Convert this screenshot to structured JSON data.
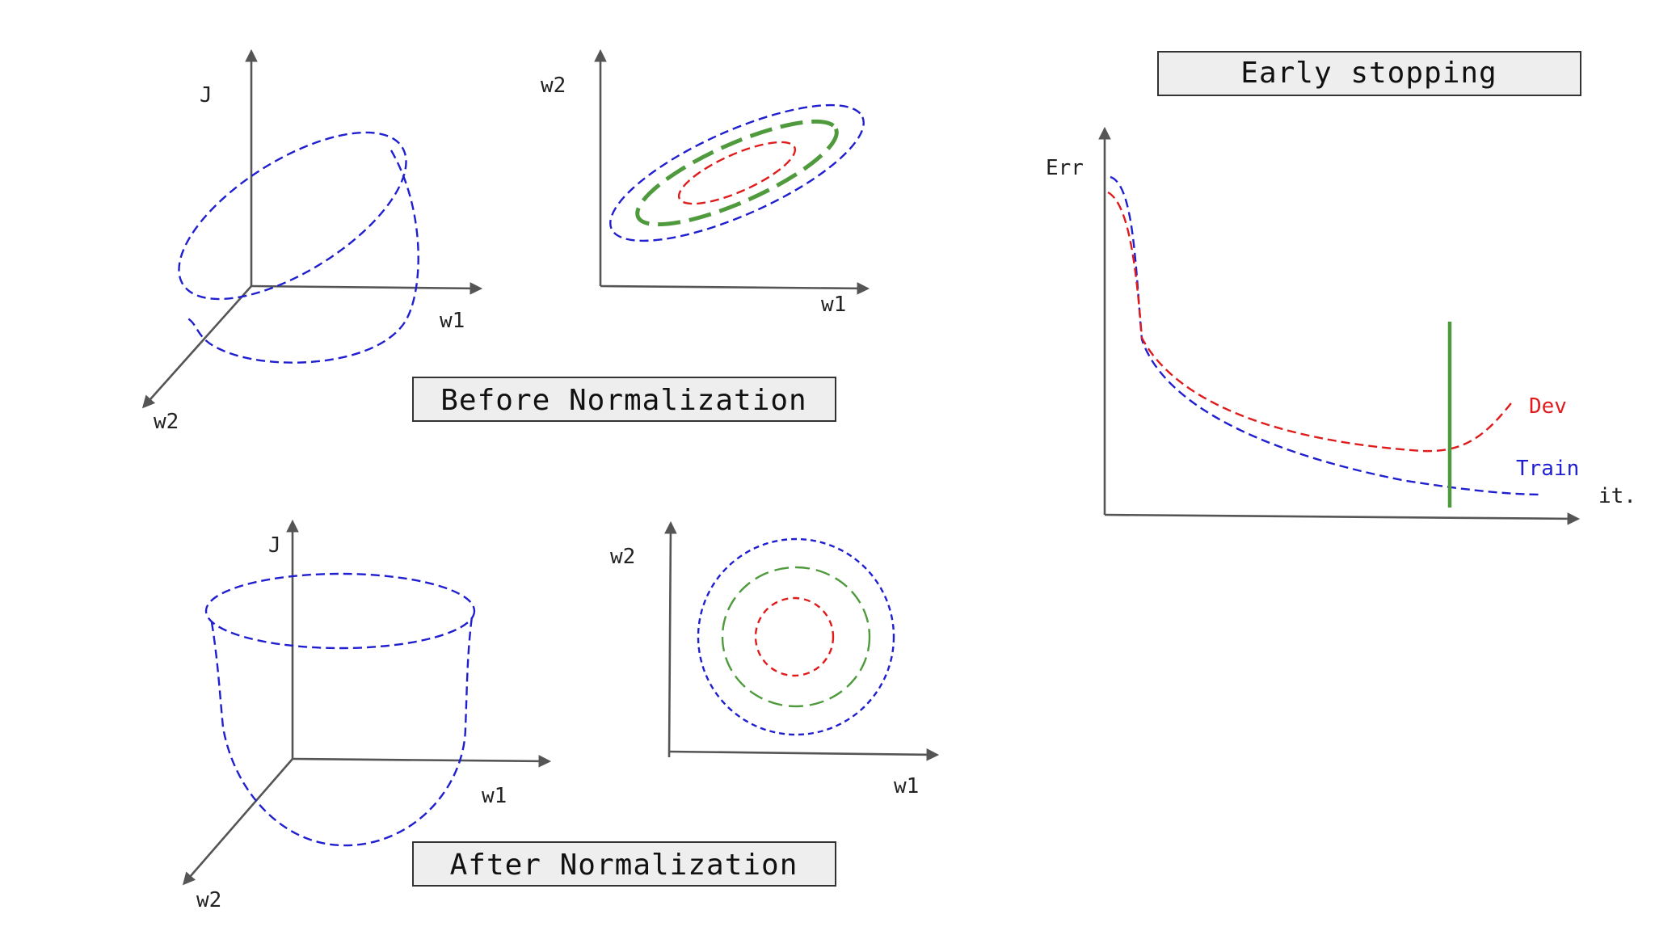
{
  "before": {
    "caption": "Before Normalization",
    "bowl": {
      "axis_j": "J",
      "axis_w1": "w1",
      "axis_w2": "w2"
    },
    "contour": {
      "axis_w2": "w2",
      "axis_w1": "w1"
    }
  },
  "after": {
    "caption": "After Normalization",
    "bowl": {
      "axis_j": "J",
      "axis_w1": "w1",
      "axis_w2": "w2"
    },
    "contour": {
      "axis_w2": "w2",
      "axis_w1": "w1"
    }
  },
  "early_stopping": {
    "title": "Early stopping",
    "y_label": "Err",
    "x_label": "it.",
    "dev_label": "Dev",
    "train_label": "Train",
    "colors": {
      "train": "#1f1fcf",
      "dev": "#e01b1b",
      "stop_line": "#4f9a3c"
    }
  }
}
